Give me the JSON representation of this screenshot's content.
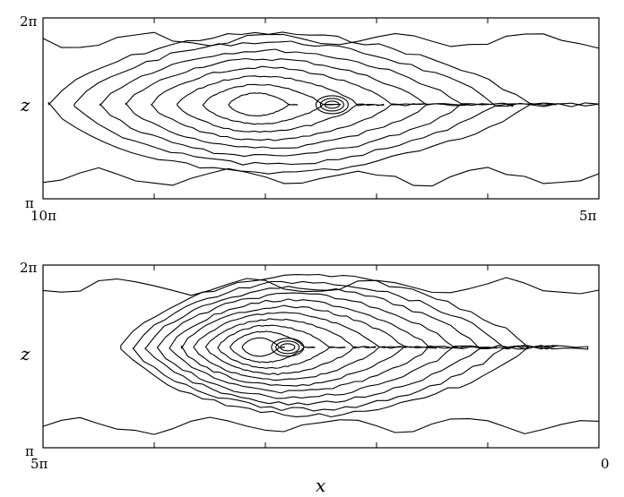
{
  "chart_data": [
    {
      "type": "contour",
      "panel": "top",
      "xlabel": "",
      "ylabel": "z",
      "xlim": [
        10,
        5
      ],
      "x_unit": "π",
      "ylim": [
        1,
        2
      ],
      "y_unit": "π",
      "x_tick_labels": [
        "10π",
        "5π"
      ],
      "y_tick_labels": [
        "2π",
        "π"
      ],
      "x_minor_ticks": [
        9,
        8,
        7,
        6
      ],
      "structure": {
        "center_z": 1.52,
        "nested_levels": 8,
        "x_start": 9.95,
        "x_end": 5.0,
        "peak_x": 8.1,
        "secondary_peak_x": 7.4
      }
    },
    {
      "type": "contour",
      "panel": "bottom",
      "xlabel": "x",
      "ylabel": "z",
      "xlim": [
        5,
        0
      ],
      "x_unit": "π",
      "ylim": [
        1,
        2
      ],
      "y_unit": "π",
      "x_tick_labels": [
        "5π",
        "0"
      ],
      "y_tick_labels": [
        "2π",
        "π"
      ],
      "x_minor_ticks": [
        4,
        3,
        2,
        1
      ],
      "structure": {
        "center_z": 1.55,
        "nested_levels": 11,
        "x_start": 4.3,
        "x_end": 0.1,
        "peak_x": 3.1,
        "secondary_peak_x": 2.8
      }
    }
  ]
}
